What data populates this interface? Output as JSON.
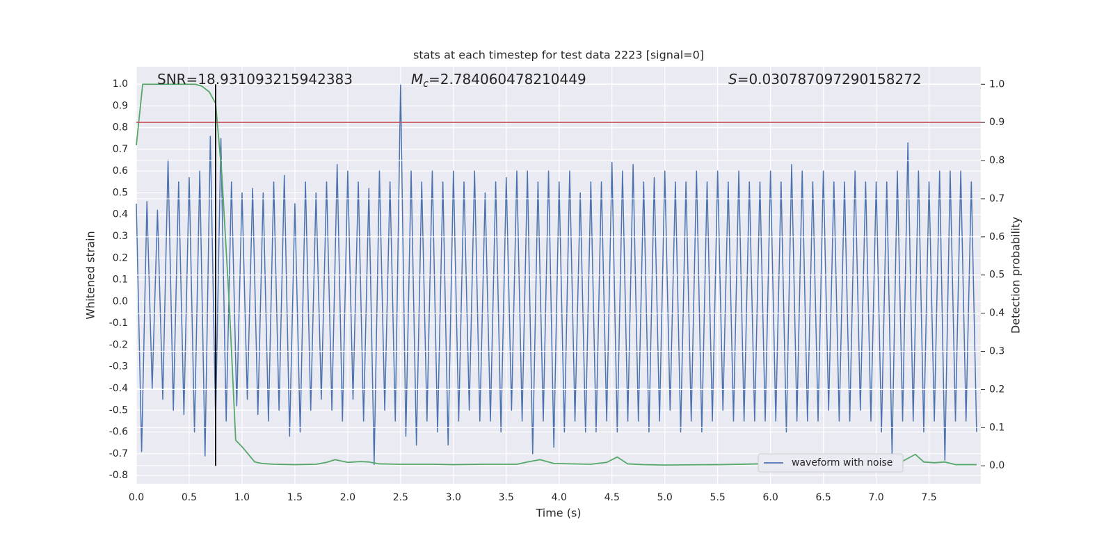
{
  "chart_data": {
    "type": "line",
    "title": "stats at each timestep for test data 2223 [signal=0]",
    "x_label": "Time (s)",
    "y_label": "Whitened strain",
    "y2_label": "Detection probability",
    "annotations": [
      {
        "text": "SNR=18.931093215942383"
      },
      {
        "symbol": "M",
        "subscript": "c",
        "text": "=2.784060478210449"
      },
      {
        "symbol": "S",
        "text": "=0.030787097290158272"
      }
    ],
    "xlim": [
      0,
      7.99
    ],
    "ylim": [
      -0.838,
      1.08
    ],
    "y2lim": [
      -0.047,
      1.046
    ],
    "xticks": [
      {
        "value": 0,
        "label": "0.0"
      },
      0.5,
      {
        "value": 1,
        "label": "1.0"
      },
      1.5,
      {
        "value": 2,
        "label": "2.0"
      },
      2.5,
      {
        "value": 3,
        "label": "3.0"
      },
      3.5,
      {
        "value": 4,
        "label": "4.0"
      },
      4.5,
      {
        "value": 5,
        "label": "5.0"
      },
      5.5,
      {
        "value": 6,
        "label": "6.0"
      },
      6.5,
      {
        "value": 7,
        "label": "7.0"
      },
      7.5
    ],
    "yticks": [
      {
        "value": 1,
        "label": "1.0"
      },
      0.9,
      0.8,
      0.7,
      0.6,
      0.5,
      0.4,
      0.3,
      0.2,
      0.1,
      {
        "value": 0,
        "label": "0.0"
      },
      -0.1,
      -0.2,
      -0.3,
      -0.4,
      -0.5,
      -0.6,
      -0.7,
      -0.8
    ],
    "y2ticks": [
      {
        "value": 1,
        "label": "1.0"
      },
      0.9,
      0.8,
      0.7,
      0.6,
      0.5,
      0.4,
      0.3,
      0.2,
      0.1,
      {
        "value": 0,
        "label": "0.0"
      }
    ],
    "grid": true,
    "background": "#eaeaf2",
    "legend": "lower right",
    "series": [
      {
        "name": "waveform with noise",
        "color": "#4c72b0",
        "x": [
          0,
          0.05,
          0.1,
          0.15,
          0.2,
          0.25,
          0.3,
          0.35,
          0.4,
          0.45,
          0.5,
          0.55,
          0.6,
          0.65,
          0.7,
          0.75,
          0.8,
          0.85,
          0.9,
          0.95,
          1,
          1.05,
          1.1,
          1.15,
          1.2,
          1.25,
          1.3,
          1.35,
          1.4,
          1.45,
          1.5,
          1.55,
          1.6,
          1.65,
          1.7,
          1.75,
          1.8,
          1.85,
          1.9,
          1.95,
          2,
          2.05,
          2.1,
          2.15,
          2.2,
          2.25,
          2.3,
          2.35,
          2.4,
          2.45,
          2.5,
          2.55,
          2.6,
          2.65,
          2.7,
          2.75,
          2.8,
          2.85,
          2.9,
          2.95,
          3,
          3.05,
          3.1,
          3.15,
          3.2,
          3.25,
          3.3,
          3.35,
          3.4,
          3.45,
          3.5,
          3.55,
          3.6,
          3.65,
          3.7,
          3.75,
          3.8,
          3.85,
          3.9,
          3.95,
          4,
          4.05,
          4.1,
          4.15,
          4.2,
          4.25,
          4.3,
          4.35,
          4.4,
          4.45,
          4.5,
          4.55,
          4.6,
          4.65,
          4.7,
          4.75,
          4.8,
          4.85,
          4.9,
          4.95,
          5,
          5.05,
          5.1,
          5.15,
          5.2,
          5.25,
          5.3,
          5.35,
          5.4,
          5.45,
          5.5,
          5.55,
          5.6,
          5.65,
          5.7,
          5.75,
          5.8,
          5.85,
          5.9,
          5.95,
          6,
          6.05,
          6.1,
          6.15,
          6.2,
          6.25,
          6.3,
          6.35,
          6.4,
          6.45,
          6.5,
          6.55,
          6.6,
          6.65,
          6.7,
          6.75,
          6.8,
          6.85,
          6.9,
          6.95,
          7,
          7.05,
          7.1,
          7.15,
          7.2,
          7.25,
          7.3,
          7.35,
          7.4,
          7.45,
          7.5,
          7.55,
          7.6,
          7.65,
          7.7,
          7.75,
          7.8,
          7.85,
          7.9,
          7.95
        ],
        "values": [
          0.45,
          -0.69,
          0.46,
          -0.4,
          0.42,
          -0.45,
          0.65,
          -0.5,
          0.55,
          -0.52,
          0.57,
          -0.6,
          0.6,
          -0.71,
          0.76,
          -0.55,
          0.75,
          -0.55,
          0.55,
          -0.48,
          0.5,
          -0.45,
          0.52,
          -0.52,
          0.5,
          -0.55,
          0.55,
          -0.5,
          0.58,
          -0.62,
          0.45,
          -0.6,
          0.55,
          -0.5,
          0.5,
          -0.45,
          0.55,
          -0.5,
          0.63,
          -0.55,
          0.6,
          -0.45,
          0.55,
          -0.55,
          0.52,
          -0.75,
          0.6,
          -0.5,
          0.55,
          -0.55,
          1.0,
          -0.62,
          0.6,
          -0.66,
          0.55,
          -0.55,
          0.6,
          -0.6,
          0.55,
          -0.66,
          0.6,
          -0.55,
          0.55,
          -0.5,
          0.6,
          -0.55,
          0.5,
          -0.55,
          0.55,
          -0.6,
          0.57,
          -0.5,
          0.6,
          -0.55,
          0.6,
          -0.7,
          0.55,
          -0.55,
          0.6,
          -0.67,
          0.55,
          -0.6,
          0.6,
          -0.55,
          0.5,
          -0.6,
          0.55,
          -0.6,
          0.55,
          -0.55,
          0.64,
          -0.6,
          0.6,
          -0.55,
          0.63,
          -0.55,
          0.55,
          -0.6,
          0.57,
          -0.55,
          0.6,
          -0.5,
          0.55,
          -0.6,
          0.55,
          -0.55,
          0.6,
          -0.6,
          0.55,
          -0.55,
          0.6,
          -0.5,
          0.55,
          -0.55,
          0.6,
          -0.55,
          0.55,
          -0.55,
          0.55,
          -0.55,
          0.6,
          -0.55,
          0.55,
          -0.6,
          0.63,
          -0.55,
          0.6,
          -0.55,
          0.55,
          -0.55,
          0.6,
          -0.5,
          0.55,
          -0.55,
          0.55,
          -0.55,
          0.6,
          -0.5,
          0.55,
          -0.55,
          0.55,
          -0.6,
          0.55,
          -0.7,
          0.6,
          -0.55,
          0.73,
          -0.55,
          0.6,
          -0.6,
          0.55,
          -0.55,
          0.6,
          -0.73,
          0.6,
          -0.55,
          0.6,
          -0.55,
          0.55,
          -0.6
        ]
      },
      {
        "color": "#55a868",
        "axis": "y2",
        "x": [
          0,
          0.06,
          0.12,
          0.19,
          0.25,
          0.31,
          0.38,
          0.44,
          0.5,
          0.56,
          0.62,
          0.69,
          0.75,
          0.81,
          0.88,
          0.94,
          1.0,
          1.06,
          1.12,
          1.19,
          1.3,
          1.5,
          1.7,
          1.8,
          1.88,
          1.95,
          2.0,
          2.12,
          2.2,
          2.3,
          2.5,
          2.8,
          3.0,
          3.3,
          3.6,
          3.7,
          3.82,
          3.95,
          4.3,
          4.45,
          4.55,
          4.65,
          4.8,
          5.0,
          5.5,
          5.9,
          6.05,
          6.12,
          6.2,
          6.25,
          6.3,
          6.6,
          6.65,
          6.72,
          6.78,
          6.85,
          6.95,
          7.0,
          7.08,
          7.15,
          7.25,
          7.37,
          7.45,
          7.55,
          7.65,
          7.75,
          7.95
        ],
        "values": [
          0.84,
          1,
          1,
          1,
          1,
          1,
          1,
          1,
          1,
          1,
          0.995,
          0.98,
          0.95,
          0.76,
          0.42,
          0.067,
          0.05,
          0.03,
          0.01,
          0.006,
          0.004,
          0.003,
          0.004,
          0.009,
          0.016,
          0.012,
          0.009,
          0.011,
          0.01,
          0.005,
          0.004,
          0.004,
          0.003,
          0.004,
          0.004,
          0.01,
          0.016,
          0.006,
          0.004,
          0.009,
          0.023,
          0.005,
          0.003,
          0.002,
          0.003,
          0.005,
          0.012,
          0.017,
          0.016,
          0.012,
          0.015,
          0.012,
          0.008,
          0.012,
          0.013,
          0.007,
          0.009,
          0.014,
          0.01,
          0.009,
          0.012,
          0.03,
          0.01,
          0.008,
          0.01,
          0.003,
          0.003
        ]
      }
    ],
    "hline": {
      "y2": 0.9,
      "color": "#c44e52"
    },
    "vline": {
      "x": 0.75,
      "y2": [
        0,
        1
      ],
      "color": "#000000"
    }
  }
}
